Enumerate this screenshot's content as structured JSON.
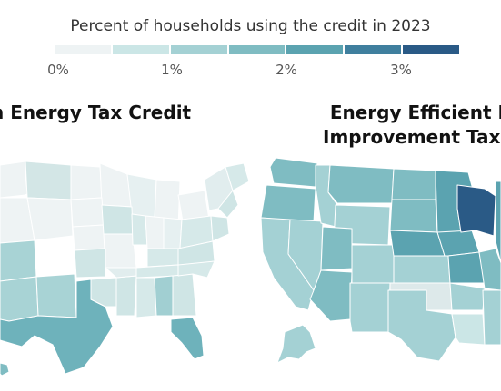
{
  "legend": {
    "title": "Percent of households using the credit in 2023",
    "ticks": [
      "0%",
      "1%",
      "2%",
      "3%"
    ],
    "colors": [
      "#eef3f4",
      "#cbe6e6",
      "#a4d1d4",
      "#7fbcc2",
      "#5ba3b0",
      "#3f7f9e",
      "#2a5a86"
    ]
  },
  "maps": {
    "left": {
      "title": "n Energy Tax Credit"
    },
    "right": {
      "title_line1": "Energy Efficient H",
      "title_line2": "Improvement Tax C"
    }
  }
}
